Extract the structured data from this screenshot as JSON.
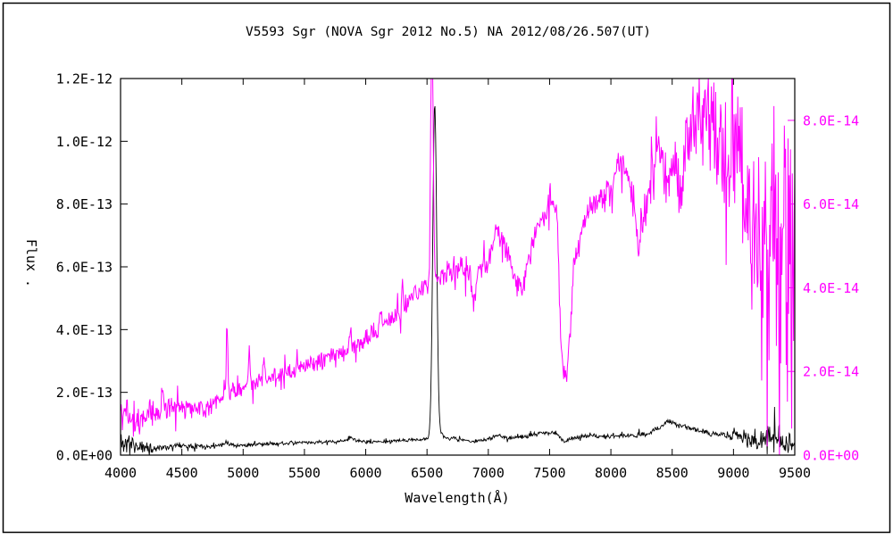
{
  "figure": {
    "background": "#ffffff",
    "border_color": "#000000"
  },
  "chart_data": {
    "type": "line",
    "title": "V5593 Sgr (NOVA Sgr 2012  No.5)    NA    2012/08/26.507(UT)",
    "xlabel": "Wavelength(Å)",
    "ylabel": "Flux  .",
    "grid": false,
    "legend": "none",
    "x_range": [
      4000,
      9500
    ],
    "x_tick_step": 500,
    "x_tick_labels": [
      "4000",
      "4500",
      "5000",
      "5500",
      "6000",
      "6500",
      "7000",
      "7500",
      "8000",
      "8500",
      "9000",
      "9500"
    ],
    "left_axis": {
      "color": "#000000",
      "scale": "1e-13",
      "scaled_max": 12,
      "ylim": [
        "0.0E+00",
        "1.2E-12"
      ],
      "tick_values_scaled": [
        0,
        2,
        4,
        6,
        8,
        10,
        12
      ],
      "tick_labels": [
        "0.0E+00",
        "2.0E-13",
        "4.0E-13",
        "6.0E-13",
        "8.0E-13",
        "1.0E-12",
        "1.2E-12"
      ]
    },
    "right_axis": {
      "color": "#ff00ff",
      "scale": "1e-14",
      "scaled_max": 9,
      "ylim": [
        "0.0E+00",
        "9.0E-14"
      ],
      "tick_values_scaled": [
        0,
        2,
        4,
        6,
        8
      ],
      "tick_labels": [
        "0.0E+00",
        "2.0E-14",
        "4.0E-14",
        "6.0E-14",
        "8.0E-14"
      ]
    },
    "sample_step": 5,
    "noise_seed": 11,
    "series": [
      {
        "name": "black-spectrum",
        "color": "#000000",
        "width": 0.9,
        "axis": "left",
        "value_scale": "1e-13",
        "anchors": [
          [
            4000,
            0.45
          ],
          [
            4100,
            0.32
          ],
          [
            4250,
            0.22
          ],
          [
            4500,
            0.3
          ],
          [
            4750,
            0.28
          ],
          [
            4861,
            0.36
          ],
          [
            4950,
            0.3
          ],
          [
            5200,
            0.36
          ],
          [
            5500,
            0.4
          ],
          [
            5750,
            0.42
          ],
          [
            5876,
            0.5
          ],
          [
            6000,
            0.42
          ],
          [
            6200,
            0.44
          ],
          [
            6400,
            0.48
          ],
          [
            6500,
            0.52
          ],
          [
            6540,
            0.6
          ],
          [
            6563,
            0.62
          ],
          [
            6600,
            0.7
          ],
          [
            6650,
            0.55
          ],
          [
            6800,
            0.48
          ],
          [
            6870,
            0.42
          ],
          [
            7000,
            0.5
          ],
          [
            7065,
            0.62
          ],
          [
            7150,
            0.55
          ],
          [
            7300,
            0.58
          ],
          [
            7450,
            0.72
          ],
          [
            7550,
            0.7
          ],
          [
            7620,
            0.45
          ],
          [
            7700,
            0.55
          ],
          [
            7800,
            0.6
          ],
          [
            8000,
            0.6
          ],
          [
            8150,
            0.62
          ],
          [
            8300,
            0.66
          ],
          [
            8400,
            0.9
          ],
          [
            8470,
            1.1
          ],
          [
            8550,
            1.0
          ],
          [
            8650,
            0.85
          ],
          [
            8800,
            0.7
          ],
          [
            8950,
            0.62
          ],
          [
            9100,
            0.55
          ],
          [
            9220,
            0.45
          ],
          [
            9300,
            0.5
          ],
          [
            9400,
            0.42
          ],
          [
            9500,
            0.38
          ]
        ],
        "noise_amp": [
          [
            4000,
            0.5
          ],
          [
            4150,
            0.28
          ],
          [
            4300,
            0.12
          ],
          [
            4600,
            0.09
          ],
          [
            5000,
            0.07
          ],
          [
            6000,
            0.06
          ],
          [
            7000,
            0.07
          ],
          [
            7600,
            0.09
          ],
          [
            8000,
            0.08
          ],
          [
            8500,
            0.11
          ],
          [
            8900,
            0.12
          ],
          [
            9050,
            0.22
          ],
          [
            9200,
            0.45
          ],
          [
            9350,
            0.5
          ],
          [
            9500,
            0.33
          ]
        ],
        "peaks": [
          {
            "x": 6563,
            "height": 10.55,
            "sigma": 16
          },
          {
            "x": 4861,
            "height": 0.12,
            "sigma": 9
          },
          {
            "x": 5876,
            "height": 0.1,
            "sigma": 8
          }
        ]
      },
      {
        "name": "magenta-spectrum",
        "color": "#ff00ff",
        "width": 1.0,
        "axis": "right",
        "value_scale": "1e-14",
        "anchors": [
          [
            4000,
            1.0
          ],
          [
            4120,
            0.85
          ],
          [
            4250,
            1.0
          ],
          [
            4400,
            1.1
          ],
          [
            4550,
            1.15
          ],
          [
            4700,
            1.1
          ],
          [
            4800,
            1.3
          ],
          [
            4870,
            1.45
          ],
          [
            4950,
            1.5
          ],
          [
            5100,
            1.75
          ],
          [
            5250,
            1.85
          ],
          [
            5400,
            2.0
          ],
          [
            5550,
            2.15
          ],
          [
            5700,
            2.35
          ],
          [
            5876,
            2.55
          ],
          [
            6000,
            2.8
          ],
          [
            6150,
            3.1
          ],
          [
            6300,
            3.5
          ],
          [
            6450,
            4.0
          ],
          [
            6563,
            4.2
          ],
          [
            6650,
            4.35
          ],
          [
            6800,
            4.45
          ],
          [
            6850,
            4.3
          ],
          [
            6880,
            3.6
          ],
          [
            6920,
            4.4
          ],
          [
            7000,
            4.6
          ],
          [
            7065,
            5.4
          ],
          [
            7150,
            4.9
          ],
          [
            7220,
            4.3
          ],
          [
            7280,
            3.9
          ],
          [
            7350,
            5.0
          ],
          [
            7430,
            5.6
          ],
          [
            7500,
            6.1
          ],
          [
            7560,
            5.9
          ],
          [
            7600,
            2.2
          ],
          [
            7640,
            1.7
          ],
          [
            7700,
            4.6
          ],
          [
            7800,
            5.8
          ],
          [
            7900,
            6.1
          ],
          [
            8000,
            6.6
          ],
          [
            8080,
            6.9
          ],
          [
            8150,
            6.6
          ],
          [
            8230,
            4.9
          ],
          [
            8300,
            6.2
          ],
          [
            8380,
            7.4
          ],
          [
            8450,
            6.6
          ],
          [
            8520,
            6.9
          ],
          [
            8560,
            6.2
          ],
          [
            8620,
            7.6
          ],
          [
            8700,
            8.2
          ],
          [
            8800,
            8.0
          ],
          [
            8900,
            7.6
          ],
          [
            9000,
            7.2
          ],
          [
            9100,
            6.4
          ],
          [
            9180,
            5.5
          ],
          [
            9260,
            4.8
          ],
          [
            9400,
            4.3
          ],
          [
            9500,
            4.6
          ]
        ],
        "noise_amp": [
          [
            4000,
            0.6
          ],
          [
            4200,
            0.4
          ],
          [
            4500,
            0.3
          ],
          [
            5000,
            0.28
          ],
          [
            5500,
            0.25
          ],
          [
            6000,
            0.28
          ],
          [
            6500,
            0.3
          ],
          [
            7000,
            0.32
          ],
          [
            7500,
            0.35
          ],
          [
            8000,
            0.45
          ],
          [
            8300,
            0.6
          ],
          [
            8600,
            1.0
          ],
          [
            8750,
            1.4
          ],
          [
            8900,
            1.8
          ],
          [
            9000,
            2.2
          ],
          [
            9100,
            2.8
          ],
          [
            9200,
            3.6
          ],
          [
            9300,
            4.2
          ],
          [
            9500,
            4.2
          ]
        ],
        "peaks": [
          {
            "x": 4340,
            "height": 0.5,
            "sigma": 6
          },
          {
            "x": 4868,
            "height": 1.6,
            "sigma": 7
          },
          {
            "x": 5050,
            "height": 0.95,
            "sigma": 7
          },
          {
            "x": 5170,
            "height": 0.6,
            "sigma": 6
          },
          {
            "x": 5876,
            "height": 0.45,
            "sigma": 7
          },
          {
            "x": 6120,
            "height": 0.5,
            "sigma": 8
          },
          {
            "x": 6300,
            "height": 0.45,
            "sigma": 7
          },
          {
            "x": 6540,
            "height": 6.0,
            "sigma": 10
          }
        ]
      }
    ]
  }
}
